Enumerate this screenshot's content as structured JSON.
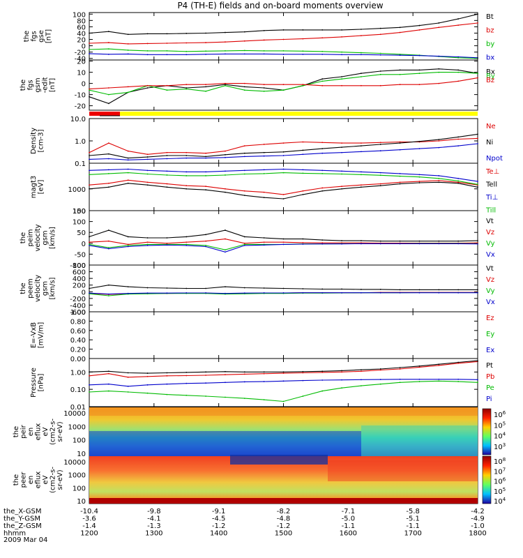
{
  "title": "P4 (TH-E) fields and on-board moments overview",
  "chart_data": [
    {
      "type": "line",
      "panel": "fgs_gse",
      "ylabel": [
        "the",
        "fgs",
        "gse",
        "[nT]"
      ],
      "yticks": [
        100,
        80,
        60,
        40,
        20,
        0,
        -20,
        -40
      ],
      "ylim": [
        -45,
        105
      ],
      "x": [
        12.0,
        12.3,
        12.6,
        12.9,
        13.2,
        13.5,
        13.8,
        14.1,
        14.4,
        14.7,
        15.0,
        15.3,
        15.6,
        15.9,
        16.2,
        16.5,
        16.8,
        17.1,
        17.4,
        17.7,
        18.0
      ],
      "series": [
        {
          "name": "Bt",
          "color": "#000000",
          "values": [
            40,
            45,
            36,
            38,
            38,
            39,
            40,
            42,
            44,
            48,
            50,
            50,
            50,
            50,
            52,
            55,
            58,
            64,
            72,
            85,
            100
          ]
        },
        {
          "name": "bz",
          "color": "#dd0000",
          "values": [
            8,
            10,
            6,
            7,
            8,
            9,
            10,
            12,
            15,
            18,
            20,
            22,
            25,
            28,
            32,
            36,
            42,
            50,
            58,
            65,
            72
          ]
        },
        {
          "name": "by",
          "color": "#00bb00",
          "values": [
            -12,
            -10,
            -14,
            -16,
            -16,
            -18,
            -17,
            -16,
            -15,
            -16,
            -16,
            -17,
            -18,
            -20,
            -22,
            -24,
            -27,
            -30,
            -34,
            -38,
            -40
          ]
        },
        {
          "name": "bx",
          "color": "#0000cc",
          "values": [
            -25,
            -27,
            -26,
            -28,
            -28,
            -28,
            -27,
            -26,
            -26,
            -26,
            -27,
            -27,
            -27,
            -28,
            -28,
            -29,
            -30,
            -31,
            -33,
            -35,
            -38
          ]
        }
      ]
    },
    {
      "type": "line",
      "panel": "fgs_gsm",
      "ylabel": [
        "the",
        "fgs",
        "gsm",
        "-edit",
        "[nT]"
      ],
      "yticks": [
        20,
        10,
        0,
        -10,
        -20
      ],
      "ylim": [
        -24,
        21
      ],
      "x": [
        12.0,
        12.3,
        12.6,
        12.9,
        13.2,
        13.5,
        13.8,
        14.1,
        14.4,
        14.7,
        15.0,
        15.3,
        15.6,
        15.9,
        16.2,
        16.5,
        16.8,
        17.1,
        17.4,
        17.7,
        18.0
      ],
      "series": [
        {
          "name": "Bx",
          "color": "#000000",
          "values": [
            -12,
            -18,
            -8,
            -4,
            -2,
            -4,
            -3,
            -1,
            -3,
            -4,
            -6,
            -2,
            4,
            6,
            9,
            11,
            12,
            12,
            13,
            12,
            9
          ]
        },
        {
          "name": "By",
          "color": "#00bb00",
          "values": [
            -6,
            -10,
            -8,
            -2,
            -6,
            -5,
            -7,
            -2,
            -6,
            -7,
            -6,
            -2,
            2,
            4,
            6,
            8,
            8,
            9,
            10,
            10,
            9
          ]
        },
        {
          "name": "Bz",
          "color": "#dd0000",
          "values": [
            -5,
            -4,
            -3,
            -2,
            -2,
            -1,
            -1,
            0,
            0,
            -1,
            -1,
            -1,
            -2,
            -2,
            -2,
            -2,
            -1,
            -1,
            0,
            2,
            5
          ]
        }
      ]
    },
    {
      "type": "line",
      "panel": "density",
      "scale": "log",
      "ylabel": [
        "Density",
        "[cm-3]"
      ],
      "yticks": [
        "10.0",
        "1.0",
        "0.1"
      ],
      "ylim": [
        0.1,
        10
      ],
      "x": [
        12.0,
        12.3,
        12.6,
        12.9,
        13.2,
        13.5,
        13.8,
        14.1,
        14.4,
        14.7,
        15.0,
        15.3,
        15.6,
        15.9,
        16.2,
        16.5,
        16.8,
        17.1,
        17.4,
        17.7,
        18.0
      ],
      "series": [
        {
          "name": "Ne",
          "color": "#dd0000",
          "values": [
            0.3,
            0.8,
            0.35,
            0.25,
            0.3,
            0.3,
            0.28,
            0.35,
            0.6,
            0.7,
            0.8,
            0.9,
            0.85,
            0.8,
            0.8,
            0.85,
            0.9,
            0.9,
            1.0,
            1.2,
            1.3
          ]
        },
        {
          "name": "Ni",
          "color": "#000000",
          "values": [
            0.22,
            0.26,
            0.17,
            0.19,
            0.22,
            0.22,
            0.2,
            0.24,
            0.28,
            0.3,
            0.32,
            0.38,
            0.45,
            0.52,
            0.6,
            0.7,
            0.8,
            0.95,
            1.15,
            1.5,
            2.0
          ]
        },
        {
          "name": "Npot",
          "color": "#0000cc",
          "values": [
            0.15,
            0.16,
            0.14,
            0.15,
            0.16,
            0.17,
            0.17,
            0.18,
            0.2,
            0.21,
            0.22,
            0.25,
            0.28,
            0.3,
            0.33,
            0.36,
            0.4,
            0.45,
            0.5,
            0.6,
            0.75
          ]
        }
      ]
    },
    {
      "type": "line",
      "panel": "temperature",
      "scale": "log",
      "ylabel": [
        "magt3",
        "[eV]"
      ],
      "yticks": [
        "1000",
        "100"
      ],
      "ylim": [
        100,
        15000
      ],
      "x": [
        12.0,
        12.3,
        12.6,
        12.9,
        13.2,
        13.5,
        13.8,
        14.1,
        14.4,
        14.7,
        15.0,
        15.3,
        15.6,
        15.9,
        16.2,
        16.5,
        16.8,
        17.1,
        17.4,
        17.7,
        18.0
      ],
      "series": [
        {
          "name": "Te⊥",
          "color": "#dd0000",
          "values": [
            1500,
            1800,
            2500,
            2000,
            1700,
            1400,
            1300,
            1000,
            800,
            700,
            550,
            800,
            1100,
            1300,
            1500,
            1700,
            2000,
            2200,
            2400,
            2000,
            1500
          ]
        },
        {
          "name": "Tell",
          "color": "#000000",
          "values": [
            1000,
            1200,
            1800,
            1500,
            1200,
            1000,
            900,
            700,
            500,
            400,
            350,
            550,
            800,
            1000,
            1200,
            1400,
            1700,
            1900,
            2000,
            1800,
            1200
          ]
        },
        {
          "name": "Ti⊥",
          "color": "#0000cc",
          "values": [
            7000,
            7500,
            8000,
            7000,
            6500,
            6000,
            6000,
            6500,
            7000,
            7500,
            8000,
            7500,
            7000,
            6500,
            6000,
            5500,
            5000,
            4500,
            4000,
            3000,
            2200
          ]
        },
        {
          "name": "Till",
          "color": "#00bb00",
          "values": [
            4500,
            5000,
            5500,
            4800,
            4300,
            4000,
            4000,
            4300,
            4800,
            5000,
            5500,
            5200,
            5000,
            4800,
            4500,
            4200,
            3800,
            3500,
            3000,
            2300,
            1600
          ]
        }
      ]
    },
    {
      "type": "line",
      "panel": "ion_velocity",
      "ylabel": [
        "the",
        "peim",
        "velocity",
        "gsm",
        "[km/s]"
      ],
      "yticks": [
        150,
        100,
        50,
        0,
        -50,
        -100
      ],
      "ylim": [
        -100,
        150
      ],
      "x": [
        12.0,
        12.3,
        12.6,
        12.9,
        13.2,
        13.5,
        13.8,
        14.1,
        14.4,
        14.7,
        15.0,
        15.3,
        15.6,
        15.9,
        16.2,
        16.5,
        16.8,
        17.1,
        17.4,
        17.7,
        18.0
      ],
      "series": [
        {
          "name": "Vt",
          "color": "#000000",
          "values": [
            30,
            60,
            30,
            25,
            25,
            30,
            40,
            60,
            30,
            25,
            20,
            20,
            15,
            12,
            12,
            10,
            10,
            10,
            10,
            10,
            12
          ]
        },
        {
          "name": "Vz",
          "color": "#dd0000",
          "values": [
            5,
            10,
            -5,
            5,
            0,
            5,
            10,
            20,
            0,
            5,
            5,
            3,
            2,
            2,
            2,
            1,
            1,
            1,
            1,
            1,
            2
          ]
        },
        {
          "name": "Vy",
          "color": "#00bb00",
          "values": [
            -5,
            -20,
            -10,
            -5,
            -5,
            -5,
            -10,
            -30,
            -5,
            -5,
            -5,
            -3,
            -3,
            -2,
            -2,
            -2,
            -2,
            -1,
            -1,
            -1,
            -2
          ]
        },
        {
          "name": "Vx",
          "color": "#0000cc",
          "values": [
            -10,
            -25,
            -15,
            -10,
            -8,
            -10,
            -15,
            -40,
            -10,
            -8,
            -5,
            -4,
            -3,
            -3,
            -2,
            -2,
            -2,
            -2,
            -2,
            -2,
            -3
          ]
        }
      ]
    },
    {
      "type": "line",
      "panel": "electron_velocity",
      "ylabel": [
        "the",
        "peem",
        "velocity",
        "gsm",
        "[km/s]"
      ],
      "yticks": [
        800,
        600,
        400,
        200,
        0,
        -200,
        -400,
        -600
      ],
      "ylim": [
        -600,
        800
      ],
      "x": [
        12.0,
        12.3,
        12.6,
        12.9,
        13.2,
        13.5,
        13.8,
        14.1,
        14.4,
        14.7,
        15.0,
        15.3,
        15.6,
        15.9,
        16.2,
        16.5,
        16.8,
        17.1,
        17.4,
        17.7,
        18.0
      ],
      "series": [
        {
          "name": "Vt",
          "color": "#000000",
          "values": [
            100,
            200,
            150,
            120,
            110,
            100,
            100,
            150,
            120,
            110,
            100,
            90,
            80,
            80,
            70,
            70,
            60,
            60,
            60,
            60,
            60
          ]
        },
        {
          "name": "Vz",
          "color": "#dd0000",
          "values": [
            -50,
            -80,
            -60,
            -50,
            -50,
            -40,
            -40,
            -60,
            -50,
            -40,
            -40,
            -30,
            -30,
            -30,
            -30,
            -20,
            -20,
            -20,
            -20,
            -20,
            -20
          ]
        },
        {
          "name": "Vy",
          "color": "#00bb00",
          "values": [
            -60,
            -120,
            -70,
            -60,
            -50,
            -50,
            -50,
            -70,
            -60,
            -50,
            -50,
            -40,
            -40,
            -35,
            -30,
            -30,
            -30,
            -25,
            -25,
            -25,
            -25
          ]
        },
        {
          "name": "Vx",
          "color": "#0000cc",
          "values": [
            -40,
            -70,
            -50,
            -40,
            -40,
            -35,
            -35,
            -50,
            -40,
            -35,
            -35,
            -30,
            -30,
            -30,
            -30,
            -30,
            -30,
            -30,
            -30,
            -30,
            -30
          ]
        }
      ]
    },
    {
      "type": "line",
      "panel": "efield",
      "ylabel": [
        "E=-VxB",
        "[mV/m]"
      ],
      "yticks": [
        "1.00",
        "0.80",
        "0.60",
        "0.40",
        "0.20",
        "0.00"
      ],
      "ylim": [
        0,
        1
      ],
      "series": [
        {
          "name": "Ez",
          "color": "#dd0000",
          "values": []
        },
        {
          "name": "Ey",
          "color": "#00bb00",
          "values": []
        },
        {
          "name": "Ex",
          "color": "#0000cc",
          "values": []
        }
      ]
    },
    {
      "type": "line",
      "panel": "pressure",
      "scale": "log",
      "ylabel": [
        "Pressure",
        "[nPa]"
      ],
      "yticks": [
        "1.00",
        "0.10",
        "0.01"
      ],
      "ylim": [
        0.01,
        6
      ],
      "x": [
        12.0,
        12.3,
        12.6,
        12.9,
        13.2,
        13.5,
        13.8,
        14.1,
        14.4,
        14.7,
        15.0,
        15.3,
        15.6,
        15.9,
        16.2,
        16.5,
        16.8,
        17.1,
        17.4,
        17.7,
        18.0
      ],
      "series": [
        {
          "name": "Pt",
          "color": "#000000",
          "values": [
            1.0,
            1.1,
            0.9,
            0.85,
            0.9,
            0.95,
            1.0,
            1.05,
            1.0,
            1.0,
            1.0,
            1.05,
            1.1,
            1.2,
            1.35,
            1.5,
            1.8,
            2.2,
            2.8,
            3.6,
            4.5
          ]
        },
        {
          "name": "Pb",
          "color": "#dd0000",
          "values": [
            0.6,
            0.8,
            0.5,
            0.55,
            0.6,
            0.62,
            0.65,
            0.7,
            0.75,
            0.8,
            0.85,
            0.9,
            0.95,
            1.0,
            1.1,
            1.3,
            1.5,
            1.9,
            2.4,
            3.2,
            4.0
          ]
        },
        {
          "name": "Pe",
          "color": "#00bb00",
          "values": [
            0.07,
            0.08,
            0.07,
            0.06,
            0.05,
            0.045,
            0.04,
            0.035,
            0.03,
            0.025,
            0.02,
            0.04,
            0.08,
            0.12,
            0.16,
            0.2,
            0.25,
            0.28,
            0.3,
            0.28,
            0.25
          ]
        },
        {
          "name": "Pi",
          "color": "#0000cc",
          "values": [
            0.18,
            0.2,
            0.15,
            0.18,
            0.2,
            0.22,
            0.23,
            0.25,
            0.27,
            0.28,
            0.3,
            0.32,
            0.34,
            0.35,
            0.36,
            0.37,
            0.38,
            0.38,
            0.38,
            0.38,
            0.36
          ]
        }
      ]
    },
    {
      "type": "heatmap",
      "panel": "ion_spectrogram",
      "ylabel": [
        "the",
        "peir",
        "en",
        "eflux",
        "eV",
        "(cm2-s-",
        "sr-eV)"
      ],
      "yticks": [
        "10000",
        "1000",
        "100",
        "10"
      ],
      "colorbar_labels": [
        "10^6",
        "10^5",
        "10^4",
        "10^3"
      ]
    },
    {
      "type": "heatmap",
      "panel": "electron_spectrogram",
      "ylabel": [
        "the",
        "peer",
        "en",
        "eflux",
        "eV",
        "(cm2-s-",
        "sr-eV)"
      ],
      "yticks": [
        "10000",
        "1000",
        "100",
        "10"
      ],
      "colorbar_labels": [
        "10^8",
        "10^7",
        "10^6",
        "10^5",
        "10^4"
      ]
    }
  ],
  "xaxis": {
    "rows": [
      {
        "label": "the_X-GSM",
        "values": [
          "-10.4",
          "-9.8",
          "-9.1",
          "-8.2",
          "-7.1",
          "-5.8",
          "-4.2"
        ]
      },
      {
        "label": "the_Y-GSM",
        "values": [
          "-3.6",
          "-4.1",
          "-4.5",
          "-4.8",
          "-5.0",
          "-5.1",
          "-4.9"
        ]
      },
      {
        "label": "the_Z-GSM",
        "values": [
          "-1.4",
          "-1.3",
          "-1.2",
          "-1.2",
          "-1.1",
          "-1.1",
          "-1.0"
        ]
      },
      {
        "label": "hhmm",
        "values": [
          "1200",
          "1300",
          "1400",
          "1500",
          "1600",
          "1700",
          "1800"
        ]
      }
    ],
    "date": "2009 Mar 04"
  }
}
